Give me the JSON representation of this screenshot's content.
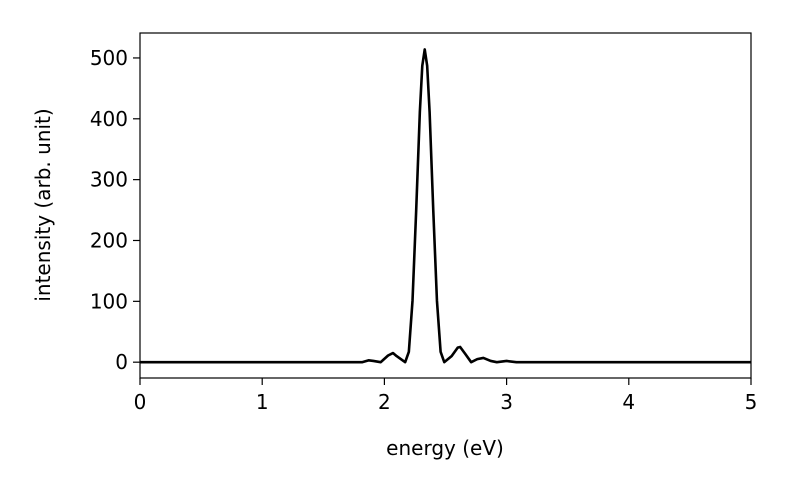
{
  "chart_data": {
    "type": "line",
    "xlabel": "energy (eV)",
    "ylabel": "intensity (arb. unit)",
    "x": [
      0,
      0.5,
      1.0,
      1.5,
      1.75,
      1.82,
      1.87,
      1.91,
      1.97,
      2.03,
      2.07,
      2.1,
      2.17,
      2.2,
      2.23,
      2.26,
      2.29,
      2.31,
      2.33,
      2.35,
      2.37,
      2.4,
      2.43,
      2.46,
      2.49,
      2.55,
      2.6,
      2.62,
      2.66,
      2.71,
      2.76,
      2.81,
      2.87,
      2.92,
      3.0,
      3.08,
      3.5,
      4.0,
      4.5,
      5.0
    ],
    "series": [
      {
        "color": "#000000",
        "values": [
          0,
          0,
          0,
          0,
          0,
          0,
          3,
          2,
          0,
          11,
          15,
          10,
          0,
          17,
          101,
          249,
          411,
          487,
          514,
          487,
          411,
          249,
          101,
          17,
          0,
          10,
          24,
          25,
          14,
          0,
          5,
          7,
          2,
          0,
          2,
          0,
          0,
          0,
          0,
          0
        ]
      }
    ],
    "xlim": [
      0,
      5
    ],
    "xticks": [
      0,
      1,
      2,
      3,
      4,
      5
    ],
    "ylim": [
      -26,
      541
    ],
    "yticks": [
      0,
      100,
      200,
      300,
      400,
      500
    ]
  }
}
